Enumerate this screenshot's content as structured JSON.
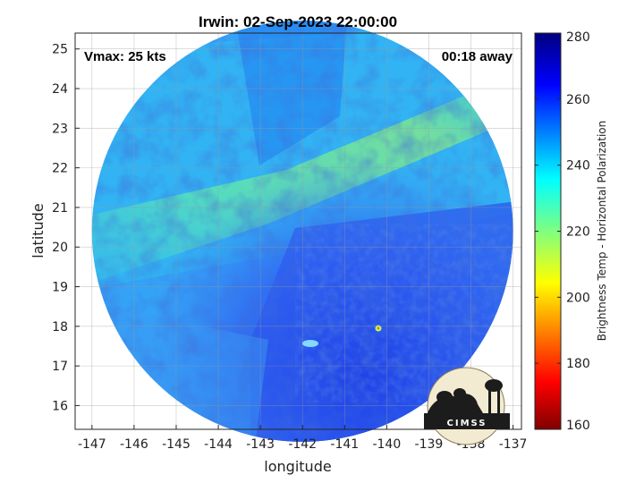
{
  "chart_data": {
    "type": "heatmap",
    "title": "Irwin: 02-Sep-2023 22:00:00",
    "xlabel": "longitude",
    "ylabel": "latitude",
    "xlim": [
      -147.4,
      -136.8
    ],
    "ylim": [
      15.4,
      25.4
    ],
    "xticks": [
      -147,
      -146,
      -145,
      -144,
      -143,
      -142,
      -141,
      -140,
      -139,
      -138,
      -137
    ],
    "yticks": [
      16,
      17,
      18,
      19,
      20,
      21,
      22,
      23,
      24,
      25
    ],
    "grid": true,
    "annotations": {
      "vmax": "Vmax: 25 kts",
      "away": "00:18 away"
    },
    "colorbar": {
      "label": "Brightness Temp - Horizontal Polarization",
      "range": [
        160,
        280
      ],
      "ticks": [
        160,
        180,
        200,
        220,
        240,
        260,
        280
      ],
      "colormap": "jet"
    },
    "swath": {
      "center_lon": -142.0,
      "center_lat": 20.4,
      "radius_deg": 5.0
    },
    "logo_text": "CIMSS"
  }
}
